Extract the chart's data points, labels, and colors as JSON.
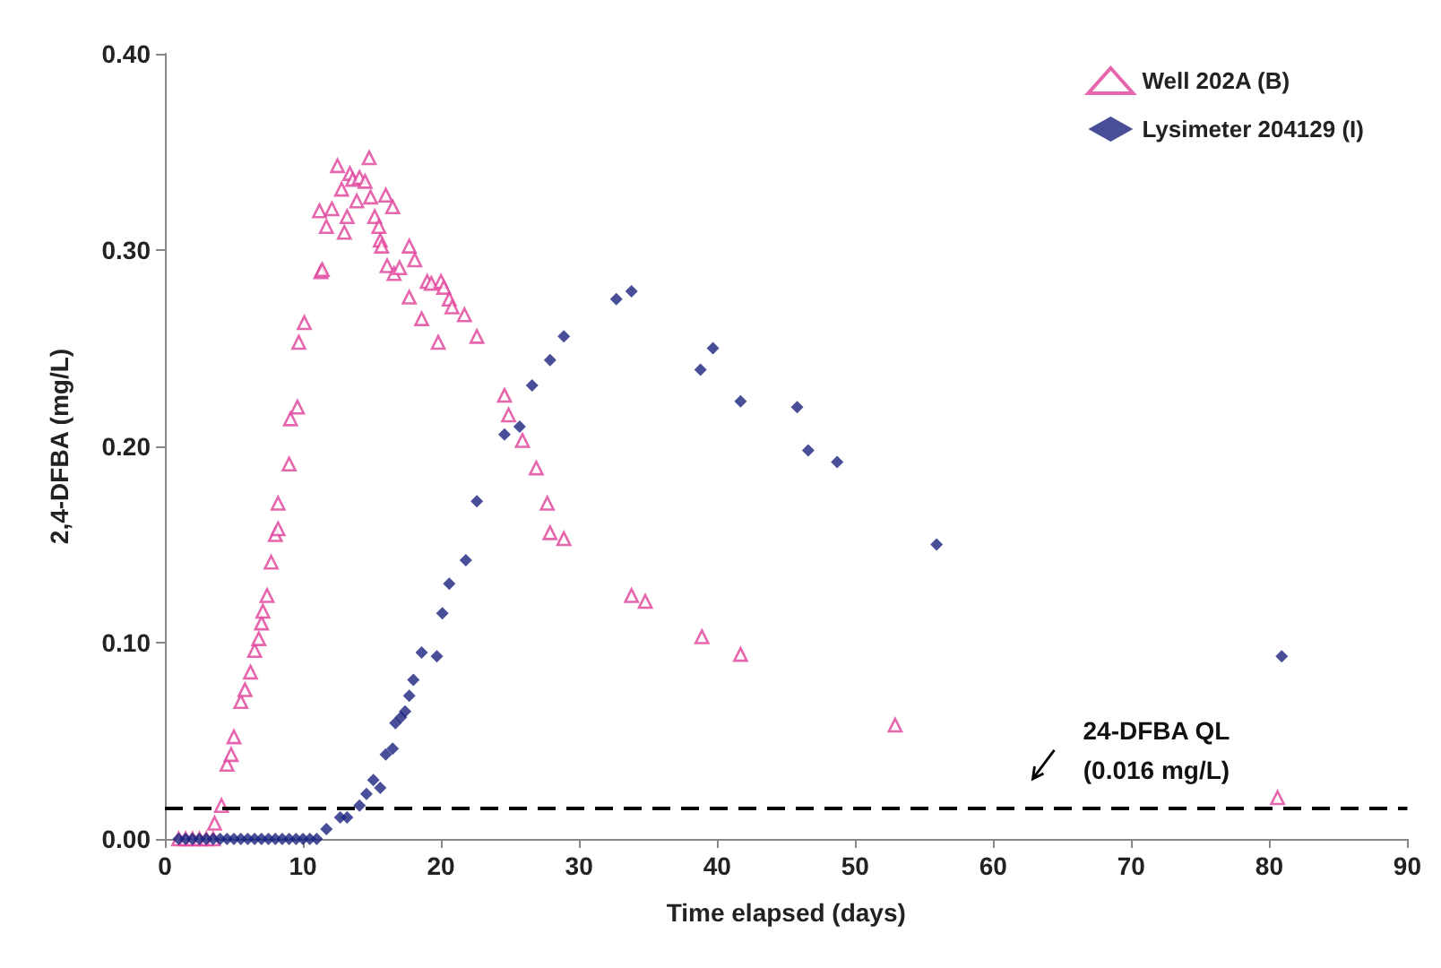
{
  "chart_data": {
    "type": "scatter",
    "xlabel": "Time elapsed (days)",
    "ylabel": "2,4-DFBA (mg/L)",
    "xlim": [
      0,
      90
    ],
    "xticks": [
      0,
      10,
      20,
      30,
      40,
      50,
      60,
      70,
      80,
      90
    ],
    "ylim": [
      0,
      0.4
    ],
    "yticks": [
      {
        "value": 0,
        "label": "0.00"
      },
      {
        "value": 0.1,
        "label": "0.10"
      },
      {
        "value": 0.2,
        "label": "0.20"
      },
      {
        "value": 0.3,
        "label": "0.30"
      },
      {
        "value": 0.4,
        "label": "0.40"
      }
    ],
    "grid": false,
    "legend": "top right",
    "series": [
      {
        "name": "Well 202A (B)",
        "color": "#e0409a",
        "marker": "triangle",
        "x": [
          1,
          1.5,
          2,
          2.5,
          3,
          3.5,
          3.6,
          4.1,
          4.5,
          4.8,
          5.0,
          5.5,
          5.8,
          6.2,
          6.5,
          6.8,
          7.0,
          7.1,
          7.4,
          7.7,
          8.0,
          8.2,
          8.2,
          9.0,
          9.1,
          9.6,
          9.7,
          10.1,
          11.3,
          11.4,
          11.2,
          11.7,
          12.1,
          12.5,
          12.8,
          13.0,
          13.2,
          13.4,
          13.6,
          13.9,
          14.1,
          14.5,
          14.8,
          14.9,
          15.2,
          15.5,
          15.6,
          15.7,
          16.0,
          16.5,
          16.1,
          16.6,
          17.0,
          17.7,
          17.7,
          18.1,
          18.6,
          19.0,
          19.3,
          20.0,
          19.8,
          20.2,
          20.6,
          20.8,
          21.7,
          22.6,
          24.6,
          24.9,
          25.9,
          26.9,
          27.7,
          27.9,
          28.9,
          33.8,
          34.8,
          38.9,
          41.7,
          52.9,
          80.6
        ],
        "values": [
          0,
          0,
          0,
          0,
          0,
          0,
          0.008,
          0.017,
          0.038,
          0.043,
          0.052,
          0.07,
          0.076,
          0.085,
          0.096,
          0.102,
          0.11,
          0.116,
          0.124,
          0.141,
          0.155,
          0.158,
          0.171,
          0.191,
          0.214,
          0.22,
          0.253,
          0.263,
          0.289,
          0.29,
          0.32,
          0.312,
          0.321,
          0.343,
          0.331,
          0.309,
          0.317,
          0.339,
          0.336,
          0.325,
          0.337,
          0.335,
          0.347,
          0.327,
          0.317,
          0.312,
          0.305,
          0.302,
          0.328,
          0.322,
          0.292,
          0.288,
          0.291,
          0.302,
          0.276,
          0.295,
          0.265,
          0.284,
          0.283,
          0.284,
          0.253,
          0.281,
          0.275,
          0.271,
          0.267,
          0.256,
          0.226,
          0.216,
          0.203,
          0.189,
          0.171,
          0.156,
          0.153,
          0.124,
          0.121,
          0.103,
          0.094,
          0.058,
          0.021
        ]
      },
      {
        "name": "Lysimeter 204129 (I)",
        "color": "#1a237e",
        "marker": "diamond",
        "x": [
          1,
          1.5,
          2,
          2.5,
          3,
          3.5,
          4,
          4.5,
          5,
          5.5,
          6,
          6.5,
          7,
          7.5,
          8,
          8.5,
          9,
          9.5,
          10,
          10.5,
          11,
          11.7,
          12.7,
          13.2,
          14.1,
          14.6,
          15.1,
          15.6,
          16.0,
          16.5,
          16.7,
          17.1,
          17.4,
          17.7,
          18.0,
          18.6,
          19.7,
          20.1,
          20.6,
          21.8,
          22.6,
          24.6,
          25.7,
          26.6,
          27.9,
          28.9,
          32.7,
          33.8,
          38.8,
          39.7,
          41.7,
          45.8,
          46.6,
          48.7,
          55.9,
          80.9
        ],
        "values": [
          0,
          0,
          0,
          0,
          0,
          0,
          0,
          0,
          0,
          0,
          0,
          0,
          0,
          0,
          0,
          0,
          0,
          0,
          0,
          0,
          0,
          0.005,
          0.011,
          0.011,
          0.017,
          0.023,
          0.03,
          0.026,
          0.043,
          0.046,
          0.059,
          0.062,
          0.065,
          0.073,
          0.081,
          0.095,
          0.093,
          0.115,
          0.13,
          0.142,
          0.172,
          0.206,
          0.21,
          0.231,
          0.244,
          0.256,
          0.275,
          0.279,
          0.239,
          0.25,
          0.223,
          0.22,
          0.198,
          0.192,
          0.15,
          0.093
        ]
      }
    ],
    "ref_lines": [
      {
        "axis": "y",
        "value": 0.016,
        "color": "#000000",
        "line_style": "dashed",
        "label": "24-DFBA QL\n(0.016 mg/L)"
      }
    ]
  }
}
